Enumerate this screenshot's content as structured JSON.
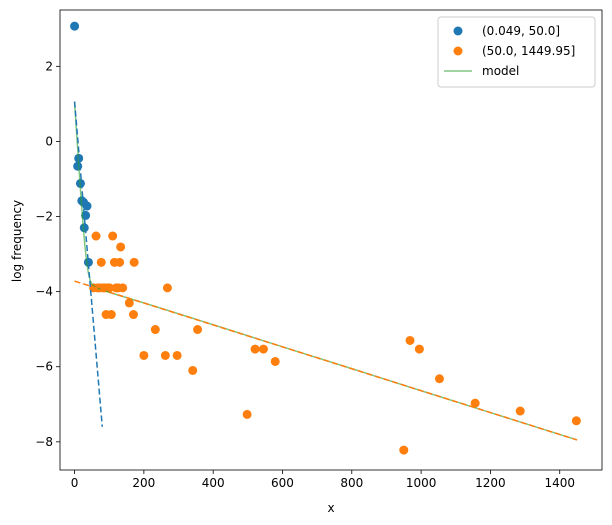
{
  "chart_data": {
    "type": "scatter",
    "title": "",
    "xlabel": "x",
    "ylabel": "log frequency",
    "xlim": [
      -42,
      1522
    ],
    "ylim": [
      -8.75,
      3.5
    ],
    "xticks": [
      0,
      200,
      400,
      600,
      800,
      1000,
      1200,
      1400
    ],
    "yticks": [
      -8,
      -6,
      -4,
      -2,
      0,
      2
    ],
    "ytick_labels": [
      "−8",
      "−6",
      "−4",
      "−2",
      "0",
      "2"
    ],
    "grid": false,
    "legend_position": "top-right",
    "series": [
      {
        "name": "(0.049, 50.0]",
        "kind": "scatter",
        "color": "#1f77b4",
        "points": [
          [
            0.05,
            3.07
          ],
          [
            9,
            -0.66
          ],
          [
            12,
            -0.45
          ],
          [
            17,
            -1.12
          ],
          [
            21,
            -1.58
          ],
          [
            26,
            -1.62
          ],
          [
            28,
            -2.3
          ],
          [
            32,
            -1.97
          ],
          [
            36,
            -1.72
          ],
          [
            40,
            -3.22
          ]
        ]
      },
      {
        "name": "(50.0, 1449.95]",
        "kind": "scatter",
        "color": "#ff7f0e",
        "points": [
          [
            55,
            -3.9
          ],
          [
            62,
            -2.52
          ],
          [
            67,
            -3.9
          ],
          [
            72,
            -3.9
          ],
          [
            77,
            -3.22
          ],
          [
            82,
            -3.9
          ],
          [
            87,
            -3.9
          ],
          [
            91,
            -4.61
          ],
          [
            96,
            -3.9
          ],
          [
            101,
            -3.9
          ],
          [
            106,
            -4.61
          ],
          [
            110,
            -2.52
          ],
          [
            115,
            -3.22
          ],
          [
            120,
            -3.9
          ],
          [
            126,
            -3.9
          ],
          [
            130,
            -3.22
          ],
          [
            133,
            -2.81
          ],
          [
            139,
            -3.9
          ],
          [
            158,
            -4.3
          ],
          [
            170,
            -4.61
          ],
          [
            172,
            -3.22
          ],
          [
            200,
            -5.7
          ],
          [
            233,
            -5.01
          ],
          [
            262,
            -5.7
          ],
          [
            268,
            -3.9
          ],
          [
            296,
            -5.7
          ],
          [
            341,
            -6.1
          ],
          [
            355,
            -5.01
          ],
          [
            498,
            -7.27
          ],
          [
            521,
            -5.53
          ],
          [
            545,
            -5.53
          ],
          [
            579,
            -5.86
          ],
          [
            950,
            -8.22
          ],
          [
            968,
            -5.3
          ],
          [
            995,
            -5.53
          ],
          [
            1053,
            -6.32
          ],
          [
            1156,
            -6.97
          ],
          [
            1286,
            -7.18
          ],
          [
            1448,
            -7.44
          ]
        ]
      },
      {
        "name": "model",
        "kind": "line",
        "color": "#2ca02c",
        "points": [
          [
            0,
            1.06
          ],
          [
            5,
            0.36
          ],
          [
            10,
            -0.33
          ],
          [
            15,
            -1.01
          ],
          [
            20,
            -1.67
          ],
          [
            25,
            -2.27
          ],
          [
            30,
            -2.8
          ],
          [
            35,
            -3.22
          ],
          [
            40,
            -3.51
          ],
          [
            45,
            -3.7
          ],
          [
            50,
            -3.8
          ],
          [
            60,
            -3.88
          ],
          [
            70,
            -3.92
          ],
          [
            80,
            -3.95
          ],
          [
            100,
            -4.02
          ],
          [
            200,
            -4.3
          ],
          [
            400,
            -4.88
          ],
          [
            600,
            -5.47
          ],
          [
            800,
            -6.05
          ],
          [
            1000,
            -6.64
          ],
          [
            1200,
            -7.22
          ],
          [
            1450,
            -7.95
          ]
        ]
      }
    ],
    "component_lines": [
      {
        "name": "component-1-fit",
        "color": "#1f77b4",
        "style": "dashed",
        "points": [
          [
            0,
            1.06
          ],
          [
            80,
            -7.6
          ]
        ]
      },
      {
        "name": "component-2-fit",
        "color": "#ff7f0e",
        "style": "dashed",
        "points": [
          [
            0,
            -3.72
          ],
          [
            1450,
            -7.95
          ]
        ]
      }
    ]
  }
}
